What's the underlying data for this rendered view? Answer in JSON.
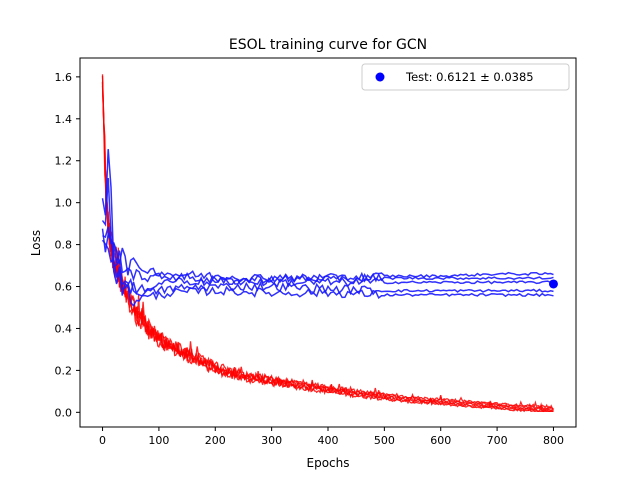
{
  "chart_data": {
    "type": "line",
    "title": "ESOL training curve for GCN",
    "xlabel": "Epochs",
    "ylabel": "Loss",
    "xlim": [
      -40,
      840
    ],
    "ylim": [
      -0.07,
      1.69
    ],
    "xticks": [
      0,
      100,
      200,
      300,
      400,
      500,
      600,
      700,
      800
    ],
    "yticks": [
      0.0,
      0.2,
      0.4,
      0.6,
      0.8,
      1.0,
      1.2,
      1.4,
      1.6
    ],
    "grid": false,
    "legend": {
      "placement": "top-right",
      "entries": [
        "Test: 0.6121 ± 0.0385"
      ]
    },
    "colors": {
      "train": "#ff0000",
      "validation": "#1a1aff",
      "test": "#0000ff"
    },
    "test_point": {
      "x": 800,
      "y": 0.6121,
      "std": 0.0385
    },
    "train_series": {
      "x": [
        0,
        3,
        6,
        10,
        15,
        20,
        30,
        40,
        50,
        60,
        80,
        100,
        130,
        160,
        200,
        250,
        300,
        350,
        400,
        450,
        500,
        550,
        600,
        650,
        700,
        750,
        800
      ],
      "mean": [
        1.58,
        1.3,
        1.05,
        0.9,
        0.8,
        0.72,
        0.65,
        0.58,
        0.52,
        0.47,
        0.4,
        0.35,
        0.3,
        0.26,
        0.21,
        0.17,
        0.15,
        0.13,
        0.11,
        0.09,
        0.075,
        0.06,
        0.05,
        0.04,
        0.03,
        0.02,
        0.01
      ],
      "count": 5
    },
    "validation_series": [
      {
        "x": [
          0,
          5,
          10,
          20,
          30,
          50,
          80,
          120,
          200,
          300,
          400,
          500,
          600,
          700,
          800
        ],
        "y": [
          1.05,
          0.95,
          1.3,
          0.75,
          0.7,
          0.56,
          0.6,
          0.63,
          0.62,
          0.64,
          0.64,
          0.65,
          0.65,
          0.66,
          0.66
        ]
      },
      {
        "x": [
          0,
          5,
          10,
          20,
          30,
          50,
          80,
          120,
          200,
          300,
          400,
          500,
          600,
          700,
          800
        ],
        "y": [
          0.88,
          0.85,
          0.9,
          0.82,
          0.75,
          0.7,
          0.68,
          0.66,
          0.65,
          0.64,
          0.64,
          0.64,
          0.64,
          0.64,
          0.64
        ]
      },
      {
        "x": [
          0,
          5,
          10,
          20,
          30,
          50,
          80,
          120,
          200,
          300,
          400,
          500,
          600,
          700,
          800
        ],
        "y": [
          0.86,
          0.82,
          0.8,
          0.78,
          0.74,
          0.67,
          0.64,
          0.65,
          0.63,
          0.62,
          0.62,
          0.62,
          0.62,
          0.62,
          0.62
        ]
      },
      {
        "x": [
          0,
          5,
          10,
          20,
          30,
          50,
          80,
          120,
          200,
          300,
          400,
          500,
          600,
          700,
          800
        ],
        "y": [
          0.87,
          0.8,
          0.78,
          0.72,
          0.66,
          0.58,
          0.57,
          0.59,
          0.6,
          0.6,
          0.59,
          0.58,
          0.58,
          0.58,
          0.58
        ]
      },
      {
        "x": [
          0,
          5,
          10,
          20,
          30,
          50,
          80,
          120,
          200,
          300,
          400,
          500,
          600,
          700,
          800
        ],
        "y": [
          0.9,
          0.85,
          1.1,
          0.7,
          0.62,
          0.54,
          0.55,
          0.57,
          0.58,
          0.57,
          0.57,
          0.56,
          0.56,
          0.56,
          0.56
        ]
      }
    ]
  }
}
